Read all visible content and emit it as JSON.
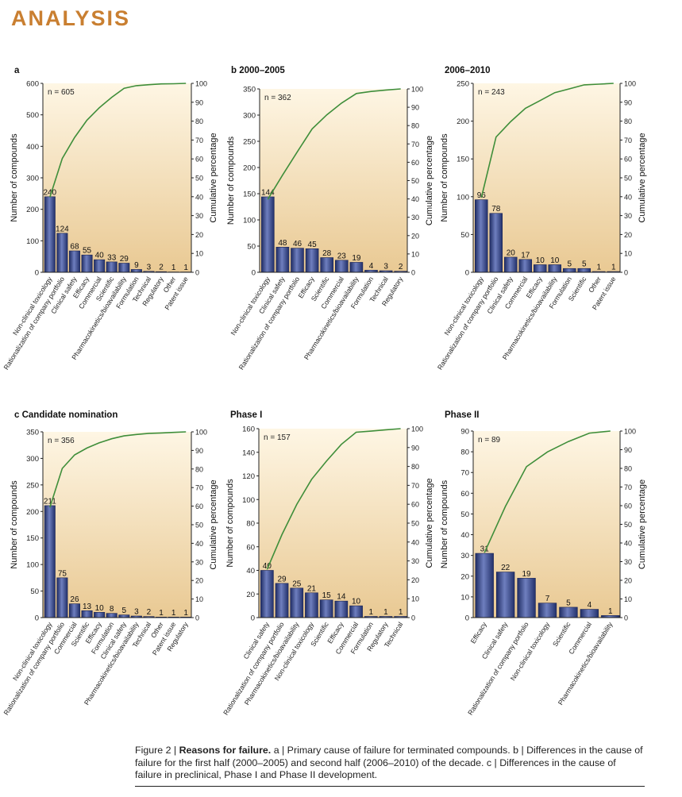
{
  "header": {
    "title": "ANALYSIS"
  },
  "colors": {
    "accent": "#c97f31",
    "bar": "#3d4f91",
    "line": "#3f8e3a",
    "panel_light": "#fdf3df",
    "panel_dark": "#e8c994"
  },
  "chart_data": [
    {
      "type": "bar",
      "panel_letter": "a",
      "subtitle": "",
      "n_label": "n = 605",
      "categories": [
        "Non-clinical toxicology",
        "Rationalization of company portfolio",
        "Clinical safety",
        "Efficacy",
        "Commercial",
        "Scientific",
        "Pharmacokinetics/bioavailability",
        "Formulation",
        "Technical",
        "Regulatory",
        "Other",
        "Patent issue"
      ],
      "values": [
        240,
        124,
        68,
        55,
        40,
        33,
        29,
        9,
        3,
        2,
        1,
        1
      ],
      "ylim": [
        0,
        600
      ],
      "yticks": [
        0,
        100,
        200,
        300,
        400,
        500,
        600
      ],
      "cumulative": [
        39.7,
        60.2,
        71.4,
        80.5,
        87.1,
        92.6,
        97.4,
        98.8,
        99.3,
        99.7,
        99.8,
        100
      ],
      "ylabel": "Number of compounds",
      "y2label": "Cumulative percentage",
      "y2ticks": [
        0,
        10,
        20,
        30,
        40,
        50,
        60,
        70,
        80,
        90,
        100
      ]
    },
    {
      "type": "bar",
      "panel_letter": "b",
      "subtitle": "2000–2005",
      "n_label": "n = 362",
      "categories": [
        "Non-clinical toxicology",
        "Clinical safety",
        "Rationalization of company portfolio",
        "Efficacy",
        "Scientific",
        "Commercial",
        "Pharmacokinetics/bioavailability",
        "Formulation",
        "Technical",
        "Regulatory"
      ],
      "values": [
        144,
        48,
        46,
        45,
        28,
        23,
        19,
        4,
        3,
        2
      ],
      "ylim": [
        0,
        350
      ],
      "yticks": [
        0,
        50,
        100,
        150,
        200,
        250,
        300,
        350
      ],
      "cumulative": [
        39.8,
        53.0,
        65.7,
        78.2,
        85.9,
        92.3,
        97.5,
        98.6,
        99.4,
        100
      ],
      "ylabel": "Number of compounds",
      "y2label": "Cumulative percentage",
      "y2ticks": [
        0,
        10,
        20,
        30,
        40,
        50,
        60,
        70,
        80,
        90,
        100
      ]
    },
    {
      "type": "bar",
      "panel_letter": "",
      "subtitle": "2006–2010",
      "n_label": "n = 243",
      "categories": [
        "Non-clinical toxicology",
        "Rationalization of company portfolio",
        "Clinical safety",
        "Commercial",
        "Efficacy",
        "Pharmacokinetics/bioavailability",
        "Formulation",
        "Scientific",
        "Other",
        "Patent issue"
      ],
      "values": [
        96,
        78,
        20,
        17,
        10,
        10,
        5,
        5,
        1,
        1
      ],
      "ylim": [
        0,
        250
      ],
      "yticks": [
        0,
        50,
        100,
        150,
        200,
        250
      ],
      "cumulative": [
        39.5,
        71.6,
        79.8,
        86.8,
        90.9,
        95.1,
        97.1,
        99.2,
        99.6,
        100
      ],
      "ylabel": "Number of compounds",
      "y2label": "Cumulative percentage",
      "y2ticks": [
        0,
        10,
        20,
        30,
        40,
        50,
        60,
        70,
        80,
        90,
        100
      ]
    },
    {
      "type": "bar",
      "panel_letter": "c",
      "subtitle": "Candidate nomination",
      "n_label": "n = 356",
      "categories": [
        "Non-clinical toxicology",
        "Rationalization of company portfolio",
        "Commercial",
        "Scientific",
        "Efficacy",
        "Formulation",
        "Clinical safety",
        "Pharmacokinetics/bioavailability",
        "Technical",
        "Other",
        "Patent issue",
        "Regulatory"
      ],
      "values": [
        211,
        75,
        26,
        13,
        10,
        8,
        5,
        3,
        2,
        1,
        1,
        1
      ],
      "ylim": [
        0,
        350
      ],
      "yticks": [
        0,
        50,
        100,
        150,
        200,
        250,
        300,
        350
      ],
      "cumulative": [
        59.3,
        80.3,
        87.6,
        91.3,
        94.1,
        96.3,
        97.8,
        98.6,
        99.2,
        99.4,
        99.7,
        100
      ],
      "ylabel": "Number of compounds",
      "y2label": "Cumulative percentage",
      "y2ticks": [
        0,
        10,
        20,
        30,
        40,
        50,
        60,
        70,
        80,
        90,
        100
      ]
    },
    {
      "type": "bar",
      "panel_letter": "",
      "subtitle": "Phase I",
      "n_label": "n = 157",
      "categories": [
        "Clinical safety",
        "Rationalization of company portfolio",
        "Pharmacokinetics/bioavailability",
        "Non-clinical toxicology",
        "Scientific",
        "Efficacy",
        "Commercial",
        "Formulation",
        "Regulatory",
        "Technical"
      ],
      "values": [
        40,
        29,
        25,
        21,
        15,
        14,
        10,
        1,
        1,
        1
      ],
      "ylim": [
        0,
        160
      ],
      "yticks": [
        0,
        20,
        40,
        60,
        80,
        100,
        120,
        140,
        160
      ],
      "cumulative": [
        25.5,
        43.9,
        59.9,
        73.2,
        82.8,
        91.7,
        98.1,
        98.7,
        99.4,
        100
      ],
      "ylabel": "Number of compounds",
      "y2label": "Cumulative percentage",
      "y2ticks": [
        0,
        10,
        20,
        30,
        40,
        50,
        60,
        70,
        80,
        90,
        100
      ]
    },
    {
      "type": "bar",
      "panel_letter": "",
      "subtitle": "Phase II",
      "n_label": "n = 89",
      "categories": [
        "Efficacy",
        "Clinical safety",
        "Rationalization of company portfolio",
        "Non-clinical toxicology",
        "Scientific",
        "Commercial",
        "Pharmacokinetics/bioavailability"
      ],
      "values": [
        31,
        22,
        19,
        7,
        5,
        4,
        1
      ],
      "ylim": [
        0,
        90
      ],
      "yticks": [
        0,
        10,
        20,
        30,
        40,
        50,
        60,
        70,
        80,
        90
      ],
      "cumulative": [
        34.8,
        59.6,
        80.9,
        88.8,
        94.4,
        98.9,
        100
      ],
      "ylabel": "Number of compounds",
      "y2label": "Cumulative percentage",
      "y2ticks": [
        0,
        10,
        20,
        30,
        40,
        50,
        60,
        70,
        80,
        90,
        100
      ]
    }
  ],
  "caption": {
    "figure_label": "Figure 2 | ",
    "title": "Reasons for failure.",
    "body": " a | Primary cause of failure for terminated compounds. b | Differences in the cause of failure for the first half (2000–2005) and second half (2006–2010) of the decade. c | Differences in the cause of failure in preclinical, Phase I and Phase II development."
  }
}
